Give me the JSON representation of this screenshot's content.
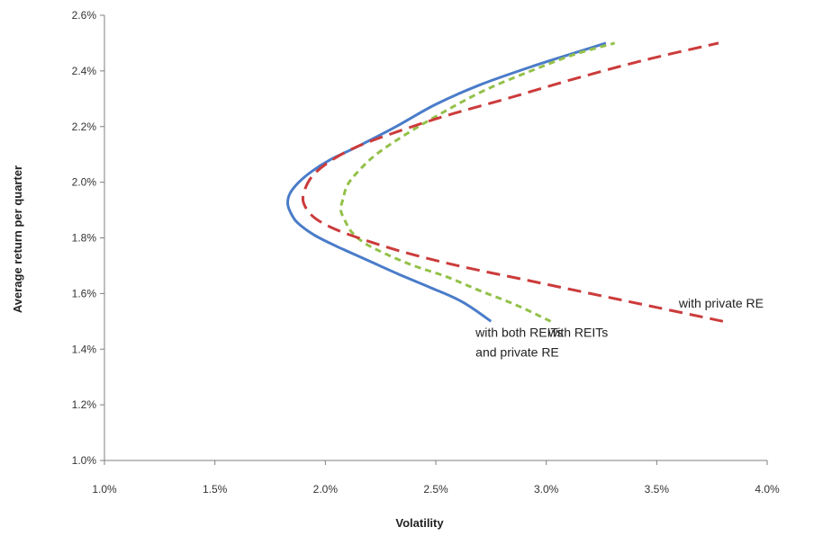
{
  "chart_data": {
    "type": "line",
    "title": "",
    "xlabel": "Volatility",
    "ylabel": "Average return per quarter",
    "xlim": [
      0.01,
      0.04
    ],
    "ylim": [
      0.01,
      0.026
    ],
    "x_ticks": [
      "1.0%",
      "1.5%",
      "2.0%",
      "2.5%",
      "3.0%",
      "3.5%",
      "4.0%"
    ],
    "y_ticks": [
      "1.0%",
      "1.2%",
      "1.4%",
      "1.6%",
      "1.8%",
      "2.0%",
      "2.2%",
      "2.4%",
      "2.6%"
    ],
    "grid": false,
    "legend": "none",
    "series": [
      {
        "name": "with both REITs and private RE",
        "color": "#4a7cc9",
        "dash": "solid",
        "points": [
          [
            0.0275,
            0.015
          ],
          [
            0.0262,
            0.0157
          ],
          [
            0.0248,
            0.0162
          ],
          [
            0.0233,
            0.0167
          ],
          [
            0.0219,
            0.0172
          ],
          [
            0.0205,
            0.0177
          ],
          [
            0.0195,
            0.0181
          ],
          [
            0.0188,
            0.0185
          ],
          [
            0.0185,
            0.0188
          ],
          [
            0.0183,
            0.0192
          ],
          [
            0.0184,
            0.0196
          ],
          [
            0.0188,
            0.02
          ],
          [
            0.0194,
            0.0204
          ],
          [
            0.0202,
            0.0208
          ],
          [
            0.0215,
            0.0213
          ],
          [
            0.0232,
            0.022
          ],
          [
            0.025,
            0.0228
          ],
          [
            0.027,
            0.0235
          ],
          [
            0.0295,
            0.0242
          ],
          [
            0.0315,
            0.0247
          ],
          [
            0.0327,
            0.025
          ]
        ]
      },
      {
        "name": "with REITs",
        "color": "#93c14a",
        "dash": "dash",
        "points": [
          [
            0.0302,
            0.015
          ],
          [
            0.0286,
            0.0156
          ],
          [
            0.027,
            0.0161
          ],
          [
            0.0255,
            0.0166
          ],
          [
            0.024,
            0.017
          ],
          [
            0.0228,
            0.0174
          ],
          [
            0.0218,
            0.0178
          ],
          [
            0.0212,
            0.0182
          ],
          [
            0.0209,
            0.0186
          ],
          [
            0.0207,
            0.019
          ],
          [
            0.0208,
            0.0194
          ],
          [
            0.021,
            0.0199
          ],
          [
            0.0215,
            0.0204
          ],
          [
            0.0223,
            0.021
          ],
          [
            0.0236,
            0.0217
          ],
          [
            0.0253,
            0.0225
          ],
          [
            0.0272,
            0.0233
          ],
          [
            0.0293,
            0.024
          ],
          [
            0.0313,
            0.0246
          ],
          [
            0.0331,
            0.025
          ]
        ]
      },
      {
        "name": "with private RE",
        "color": "#cc3b3b",
        "dash": "longdash",
        "points": [
          [
            0.038,
            0.015
          ],
          [
            0.035,
            0.0155
          ],
          [
            0.032,
            0.016
          ],
          [
            0.029,
            0.0165
          ],
          [
            0.026,
            0.017
          ],
          [
            0.0235,
            0.0175
          ],
          [
            0.0215,
            0.018
          ],
          [
            0.0202,
            0.0184
          ],
          [
            0.0194,
            0.0188
          ],
          [
            0.019,
            0.0193
          ],
          [
            0.0191,
            0.0198
          ],
          [
            0.0195,
            0.0203
          ],
          [
            0.0203,
            0.0208
          ],
          [
            0.0215,
            0.0213
          ],
          [
            0.0232,
            0.0218
          ],
          [
            0.0255,
            0.0224
          ],
          [
            0.0282,
            0.023
          ],
          [
            0.0312,
            0.0237
          ],
          [
            0.0345,
            0.0244
          ],
          [
            0.0378,
            0.025
          ]
        ]
      }
    ],
    "annotations": [
      {
        "lines": [
          "with both REITs",
          "and private RE"
        ],
        "x": 0.0268,
        "y": 0.01445
      },
      {
        "lines": [
          "with REITs"
        ],
        "x": 0.0301,
        "y": 0.01445
      },
      {
        "lines": [
          "with private  RE"
        ],
        "x": 0.036,
        "y": 0.0155
      }
    ]
  }
}
